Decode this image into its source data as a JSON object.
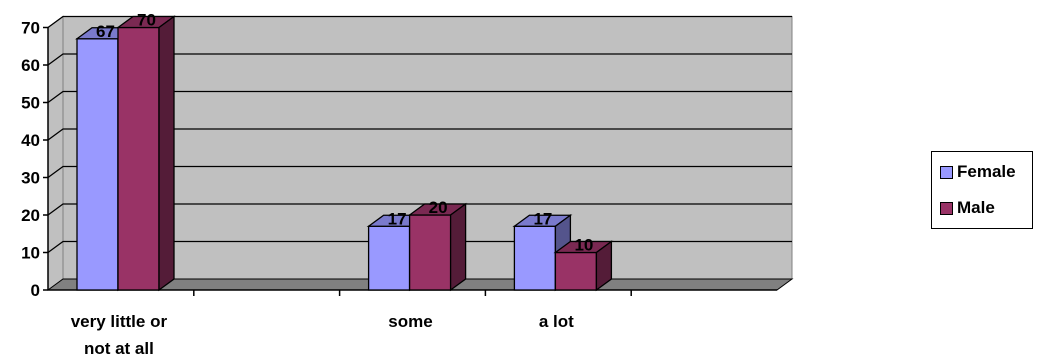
{
  "chart_data": {
    "type": "bar",
    "categories": [
      "very little or\nnot at all",
      "",
      "some",
      "a lot",
      ""
    ],
    "series": [
      {
        "name": "Female",
        "values": [
          67,
          null,
          17,
          17,
          null
        ],
        "color": "#9999ff"
      },
      {
        "name": "Male",
        "values": [
          70,
          null,
          20,
          10,
          null
        ],
        "color": "#993366"
      }
    ],
    "ylim": [
      0,
      70
    ],
    "y_ticks": [
      "0",
      "10",
      "20",
      "30",
      "40",
      "50",
      "60",
      "70"
    ],
    "grid": true,
    "legend_position": "right",
    "plot_background": "#c0c0c0",
    "floor_color": "#808080",
    "style": "3d-clustered-column"
  }
}
